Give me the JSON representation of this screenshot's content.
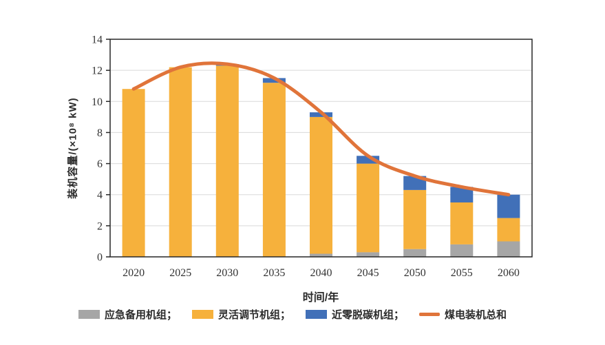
{
  "chart_data": {
    "type": "bar",
    "subtype": "stacked-bars-with-total-line",
    "categories": [
      "2020",
      "2025",
      "2030",
      "2035",
      "2040",
      "2045",
      "2050",
      "2055",
      "2060"
    ],
    "series": [
      {
        "name": "应急备用机组",
        "render": "bar-stack",
        "color": "#A6A6A6",
        "values": [
          0,
          0,
          0,
          0,
          0.2,
          0.3,
          0.5,
          0.8,
          1.0
        ]
      },
      {
        "name": "灵活调节机组",
        "render": "bar-stack",
        "color": "#F6B13C",
        "values": [
          10.8,
          12.2,
          12.3,
          11.2,
          8.8,
          5.7,
          3.8,
          2.7,
          1.5
        ]
      },
      {
        "name": "近零脱碳机组",
        "render": "bar-stack",
        "color": "#4170B8",
        "values": [
          0,
          0,
          0.1,
          0.3,
          0.3,
          0.5,
          0.9,
          1.0,
          1.5
        ]
      },
      {
        "name": "煤电装机总和",
        "render": "line",
        "color": "#E0743A",
        "values": [
          10.8,
          12.2,
          12.4,
          11.5,
          9.3,
          6.5,
          5.2,
          4.5,
          4.0
        ]
      }
    ],
    "title": "",
    "xlabel": "时间/年",
    "ylabel": "装机容量/(×10⁸ kW)",
    "ylim": [
      0,
      14
    ],
    "ytick_step": 2,
    "yticks": [
      0,
      2,
      4,
      6,
      8,
      10,
      12,
      14
    ],
    "grid": "horizontal",
    "legend_position": "bottom",
    "legend": [
      {
        "swatch": "rect",
        "color": "#A6A6A6",
        "label": "应急备用机组；"
      },
      {
        "swatch": "rect",
        "color": "#F6B13C",
        "label": "灵活调节机组；"
      },
      {
        "swatch": "rect",
        "color": "#4170B8",
        "label": "近零脱碳机组；"
      },
      {
        "swatch": "line",
        "color": "#E0743A",
        "label": "煤电装机总和"
      }
    ],
    "style": {
      "grid_color": "#D9D9D9",
      "axis_color": "#262626",
      "tick_label_color": "#333333",
      "background": "#FFFFFF"
    }
  }
}
